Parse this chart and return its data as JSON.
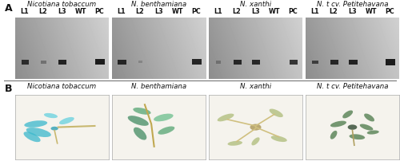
{
  "fig_width": 5.0,
  "fig_height": 2.02,
  "dpi": 100,
  "background_color": "#ffffff",
  "text_color": "#111111",
  "panel_A_label": "A",
  "panel_B_label": "B",
  "panel_label_fontsize": 9,
  "species_fontsize": 6.2,
  "lane_fontsize": 5.8,
  "lane_labels": [
    "L1",
    "L2",
    "L3",
    "WT",
    "PC"
  ],
  "n_panels": 4,
  "species_A": [
    "Nicotiana tobaccum",
    "N. benthamiana",
    "N. xanthi",
    "N. t cv. Petitehavana"
  ],
  "species_B": [
    "Nicotiana tobaccum",
    "N. benthamiana",
    "N. xanthi",
    "N. t cv. Petitehavana"
  ],
  "gel_bg_light": "#d8d8d8",
  "gel_bg_dark": "#909090",
  "gel_border_color": "#555555",
  "gel_band_color": "#101010",
  "gel_bands": {
    "0": [
      {
        "lane": 0,
        "intensity": 0.85,
        "size": 0.7
      },
      {
        "lane": 1,
        "intensity": 0.35,
        "size": 0.5
      },
      {
        "lane": 2,
        "intensity": 0.95,
        "size": 0.8
      },
      {
        "lane": 4,
        "intensity": 1.0,
        "size": 0.9
      }
    ],
    "1": [
      {
        "lane": 0,
        "intensity": 0.9,
        "size": 0.85
      },
      {
        "lane": 1,
        "intensity": 0.2,
        "size": 0.4
      },
      {
        "lane": 4,
        "intensity": 0.95,
        "size": 0.9
      }
    ],
    "2": [
      {
        "lane": 0,
        "intensity": 0.3,
        "size": 0.45
      },
      {
        "lane": 1,
        "intensity": 0.9,
        "size": 0.8
      },
      {
        "lane": 2,
        "intensity": 0.9,
        "size": 0.8
      },
      {
        "lane": 4,
        "intensity": 0.85,
        "size": 0.75
      }
    ],
    "3": [
      {
        "lane": 0,
        "intensity": 0.7,
        "size": 0.6
      },
      {
        "lane": 1,
        "intensity": 0.9,
        "size": 0.8
      },
      {
        "lane": 2,
        "intensity": 0.95,
        "size": 0.85
      },
      {
        "lane": 4,
        "intensity": 1.0,
        "size": 0.95
      }
    ]
  },
  "photo_bg": "#f5f3ed",
  "photo_border": "#aaaaaa",
  "plant_leaf_colors": [
    [
      "#3ab8cc",
      "#2da0b5",
      "#5ccede",
      "#1e90a0"
    ],
    [
      "#5ca878",
      "#4a9068",
      "#70c090",
      "#3a8060"
    ],
    [
      "#a8b870",
      "#90a060",
      "#bcc880",
      "#788050"
    ],
    [
      "#4a7848",
      "#385838",
      "#60a060",
      "#284828"
    ]
  ],
  "plant_stem_colors": [
    "#c8b870",
    "#c0a850",
    "#d0c080",
    "#b0a060"
  ],
  "separator_color": "#666666"
}
